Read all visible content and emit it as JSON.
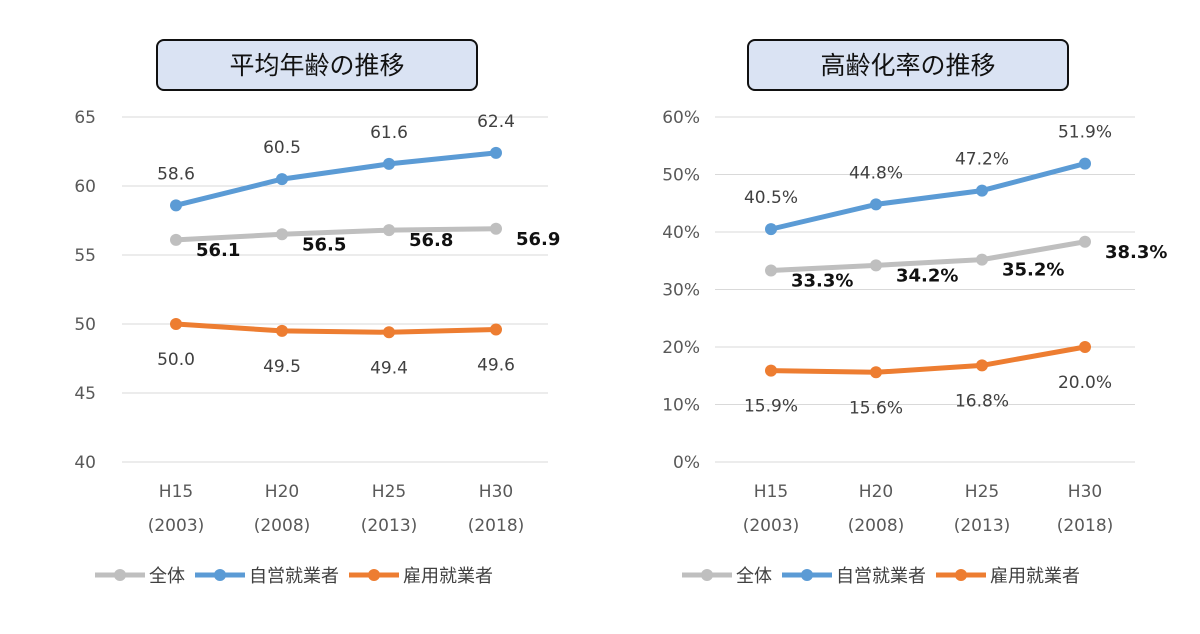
{
  "chart_data": [
    {
      "type": "line",
      "title": "平均年齢の推移",
      "categories": [
        [
          "H15",
          "(2003)"
        ],
        [
          "H20",
          "(2008)"
        ],
        [
          "H25",
          "(2013)"
        ],
        [
          "H30",
          "(2018)"
        ]
      ],
      "ylim": [
        40,
        65
      ],
      "yticks": [
        40,
        45,
        50,
        55,
        60,
        65
      ],
      "ytick_labels": [
        "40",
        "45",
        "50",
        "55",
        "60",
        "65"
      ],
      "grid": true,
      "legend": "bottom",
      "series": [
        {
          "name": "全体",
          "values": [
            56.1,
            56.5,
            56.8,
            56.9
          ],
          "labels": [
            "56.1",
            "56.5",
            "56.8",
            "56.9"
          ],
          "color": "#bfbfbf",
          "label_pos": "right",
          "bold": true
        },
        {
          "name": "自営就業者",
          "values": [
            58.6,
            60.5,
            61.6,
            62.4
          ],
          "labels": [
            "58.6",
            "60.5",
            "61.6",
            "62.4"
          ],
          "color": "#5b9bd5",
          "label_pos": "above",
          "bold": false
        },
        {
          "name": "雇用就業者",
          "values": [
            50.0,
            49.5,
            49.4,
            49.6
          ],
          "labels": [
            "50.0",
            "49.5",
            "49.4",
            "49.6"
          ],
          "color": "#ed7d31",
          "label_pos": "below",
          "bold": false
        }
      ]
    },
    {
      "type": "line",
      "title": "高齢化率の推移",
      "categories": [
        [
          "H15",
          "(2003)"
        ],
        [
          "H20",
          "(2008)"
        ],
        [
          "H25",
          "(2013)"
        ],
        [
          "H30",
          "(2018)"
        ]
      ],
      "ylim": [
        0,
        60
      ],
      "yticks": [
        0,
        10,
        20,
        30,
        40,
        50,
        60
      ],
      "ytick_labels": [
        "0%",
        "10%",
        "20%",
        "30%",
        "40%",
        "50%",
        "60%"
      ],
      "grid": true,
      "legend": "bottom",
      "series": [
        {
          "name": "全体",
          "values": [
            33.3,
            34.2,
            35.2,
            38.3
          ],
          "labels": [
            "33.3%",
            "34.2%",
            "35.2%",
            "38.3%"
          ],
          "color": "#bfbfbf",
          "label_pos": "right",
          "bold": true
        },
        {
          "name": "自営就業者",
          "values": [
            40.5,
            44.8,
            47.2,
            51.9
          ],
          "labels": [
            "40.5%",
            "44.8%",
            "47.2%",
            "51.9%"
          ],
          "color": "#5b9bd5",
          "label_pos": "above",
          "bold": false
        },
        {
          "name": "雇用就業者",
          "values": [
            15.9,
            15.6,
            16.8,
            20.0
          ],
          "labels": [
            "15.9%",
            "15.6%",
            "16.8%",
            "20.0%"
          ],
          "color": "#ed7d31",
          "label_pos": "below",
          "bold": false
        }
      ]
    }
  ]
}
